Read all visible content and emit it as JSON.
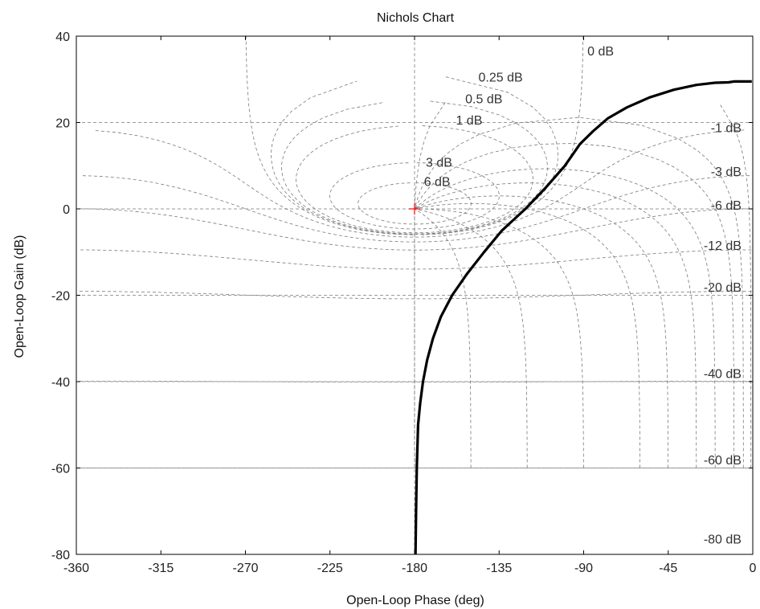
{
  "chart_data": {
    "type": "line",
    "title": "Nichols Chart",
    "xlabel": "Open-Loop Phase (deg)",
    "ylabel": "Open-Loop Gain (dB)",
    "xlim": [
      -360,
      0
    ],
    "ylim": [
      -80,
      40
    ],
    "xticks": [
      -360,
      -315,
      -270,
      -225,
      -180,
      -135,
      -90,
      -45,
      0
    ],
    "yticks": [
      -80,
      -60,
      -40,
      -20,
      0,
      20,
      40
    ],
    "grid": "dashed nichols grid",
    "critical_point": {
      "phase": -180,
      "gain": 0,
      "marker": "+",
      "color": "#ff0000"
    },
    "closed_loop_magnitude_labels": [
      "0 dB",
      "0.25 dB",
      "0.5 dB",
      "1 dB",
      "3 dB",
      "6 dB",
      "-1 dB",
      "-3 dB",
      "-6 dB",
      "-12 dB",
      "-20 dB",
      "-40 dB",
      "-60 dB",
      "-80 dB"
    ],
    "series": [
      {
        "color": "#000000",
        "x": [
          -179.5,
          -179.2,
          -178.8,
          -178.1,
          -177.0,
          -175.5,
          -173.3,
          -170.2,
          -166.0,
          -160.0,
          -152.0,
          -143.0,
          -133.5,
          -121.0,
          -110.0,
          -100.0,
          -92.0,
          -85.0,
          -77.0,
          -67.0,
          -55.0,
          -42.0,
          -30.0,
          -20.0,
          -13.0,
          -10.0,
          -0.5
        ],
        "y": [
          -80,
          -70,
          -60,
          -50,
          -45,
          -40,
          -35,
          -30,
          -25,
          -20,
          -15,
          -10,
          -5,
          0,
          5,
          10,
          15,
          18,
          21,
          23.5,
          25.8,
          27.6,
          28.7,
          29.2,
          29.3,
          29.5,
          29.5
        ]
      }
    ]
  }
}
